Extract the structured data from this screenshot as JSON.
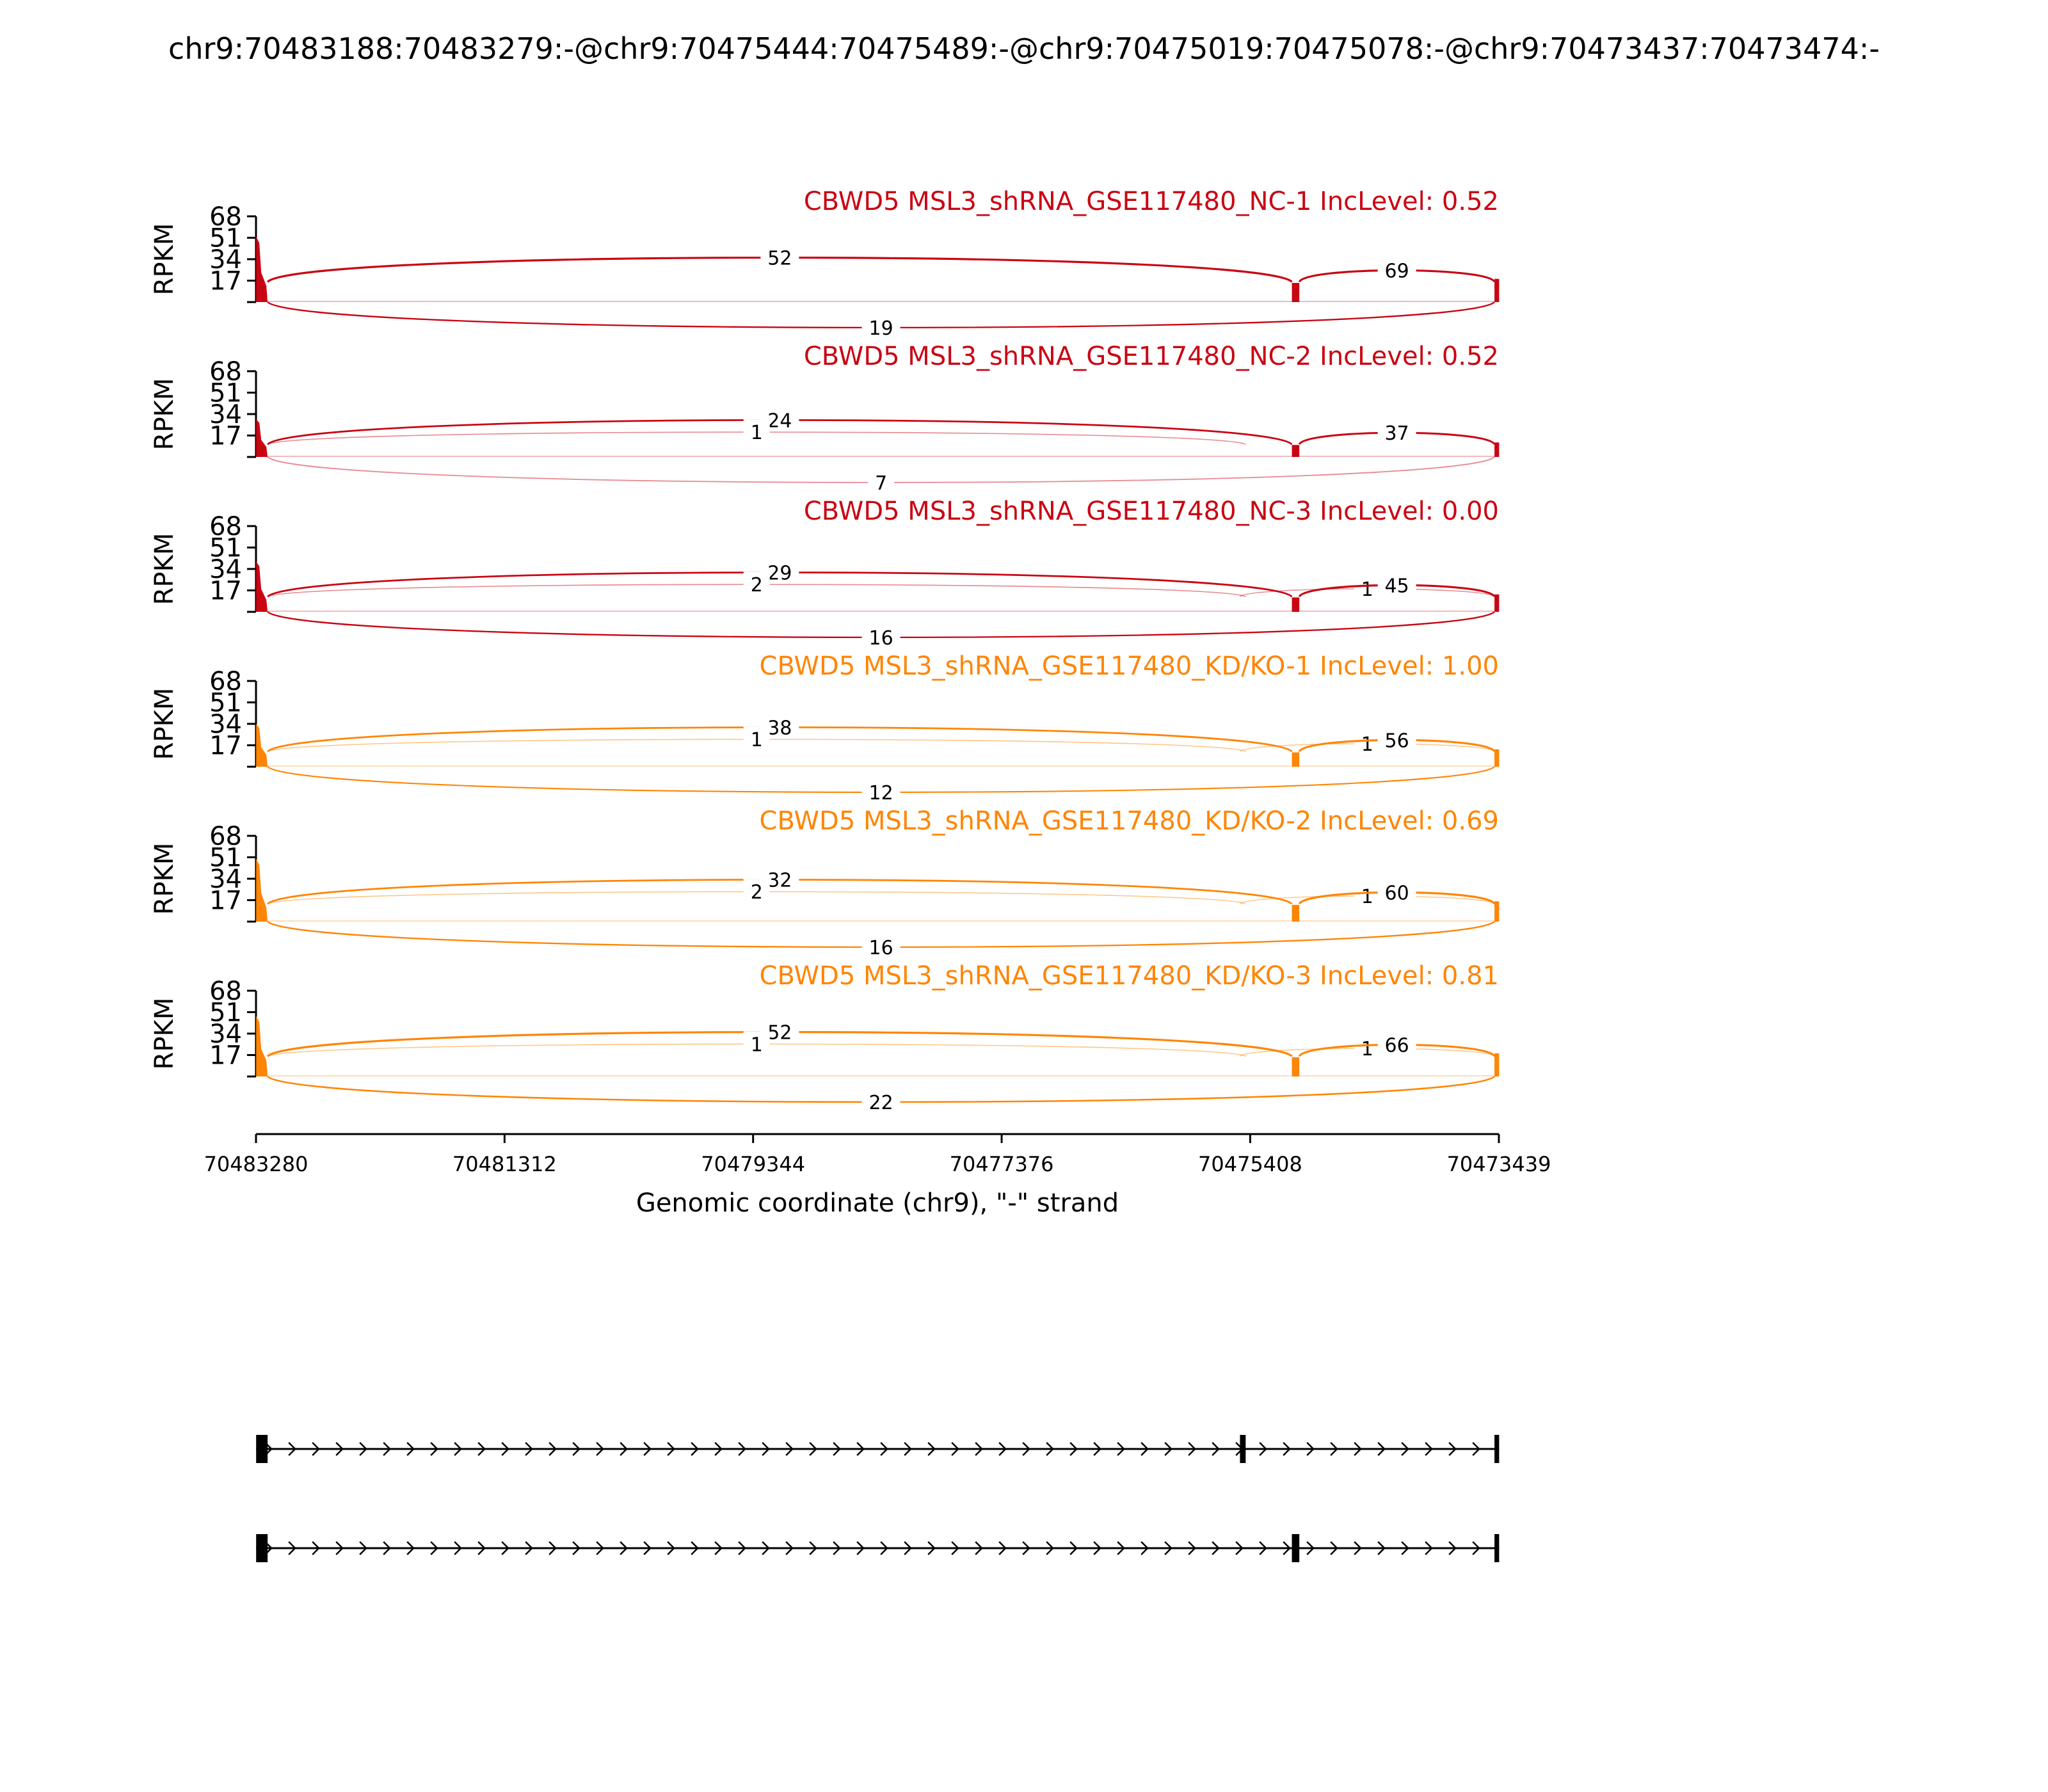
{
  "chart_data": {
    "type": "sashimi",
    "title": "chr9:70483188:70483279:-@chr9:70475444:70475489:-@chr9:70475019:70475078:-@chr9:70473437:70473474:-",
    "xlabel": "Genomic coordinate (chr9), \"-\" strand",
    "ylabel": "RPKM",
    "xlim": [
      70483280,
      70473439
    ],
    "x_ticks": [
      "70483280",
      "70481312",
      "70479344",
      "70477376",
      "70475408",
      "70473439"
    ],
    "ylim": [
      0,
      68
    ],
    "y_ticks": [
      "68",
      "51",
      "34",
      "17"
    ],
    "colors": {
      "NC": "#c90513",
      "KD": "#ff8505",
      "axis": "#000000"
    },
    "tracks": [
      {
        "label": "CBWD5 MSL3_shRNA_GSE117480_NC-1 IncLevel: 0.52",
        "group": "NC",
        "peak": 52,
        "mid_height": 8,
        "junctions": [
          {
            "from": 70483188,
            "to": 70475078,
            "label": "52",
            "side": "above",
            "weight": 1.0
          },
          {
            "from": 70475019,
            "to": 70473474,
            "label": "69",
            "side": "above",
            "weight": 1.0
          },
          {
            "from": 70483188,
            "to": 70473474,
            "label": "19",
            "side": "below",
            "weight": 0.6
          }
        ]
      },
      {
        "label": "CBWD5 MSL3_shRNA_GSE117480_NC-2 IncLevel: 0.52",
        "group": "NC",
        "peak": 30,
        "mid_height": 5,
        "junctions": [
          {
            "from": 70483188,
            "to": 70475078,
            "label": "24",
            "side": "above",
            "weight": 0.8
          },
          {
            "from": 70483188,
            "to": 70475444,
            "label": "1",
            "side": "above",
            "weight": 0.3
          },
          {
            "from": 70475019,
            "to": 70473474,
            "label": "37",
            "side": "above",
            "weight": 0.9
          },
          {
            "from": 70483188,
            "to": 70473474,
            "label": "7",
            "side": "below",
            "weight": 0.4
          }
        ]
      },
      {
        "label": "CBWD5 MSL3_shRNA_GSE117480_NC-3 IncLevel: 0.00",
        "group": "NC",
        "peak": 40,
        "mid_height": 6,
        "junctions": [
          {
            "from": 70483188,
            "to": 70475078,
            "label": "29",
            "side": "above",
            "weight": 0.8
          },
          {
            "from": 70483188,
            "to": 70475444,
            "label": "2",
            "side": "above",
            "weight": 0.3
          },
          {
            "from": 70475489,
            "to": 70473474,
            "label": "1",
            "side": "above",
            "weight": 0.25
          },
          {
            "from": 70475019,
            "to": 70473474,
            "label": "45",
            "side": "above",
            "weight": 1.0
          },
          {
            "from": 70483188,
            "to": 70473474,
            "label": "16",
            "side": "below",
            "weight": 0.6
          }
        ]
      },
      {
        "label": "CBWD5 MSL3_shRNA_GSE117480_KD/KO-1 IncLevel: 1.00",
        "group": "KD",
        "peak": 34,
        "mid_height": 6,
        "junctions": [
          {
            "from": 70483188,
            "to": 70475078,
            "label": "38",
            "side": "above",
            "weight": 0.8
          },
          {
            "from": 70483188,
            "to": 70475444,
            "label": "1",
            "side": "above",
            "weight": 0.3
          },
          {
            "from": 70475489,
            "to": 70473474,
            "label": "1",
            "side": "above",
            "weight": 0.25
          },
          {
            "from": 70475019,
            "to": 70473474,
            "label": "56",
            "side": "above",
            "weight": 1.0
          },
          {
            "from": 70483188,
            "to": 70473474,
            "label": "12",
            "side": "below",
            "weight": 0.5
          }
        ]
      },
      {
        "label": "CBWD5 MSL3_shRNA_GSE117480_KD/KO-2 IncLevel: 0.69",
        "group": "KD",
        "peak": 50,
        "mid_height": 7,
        "junctions": [
          {
            "from": 70483188,
            "to": 70475078,
            "label": "32",
            "side": "above",
            "weight": 0.8
          },
          {
            "from": 70483188,
            "to": 70475444,
            "label": "2",
            "side": "above",
            "weight": 0.3
          },
          {
            "from": 70475489,
            "to": 70473474,
            "label": "1",
            "side": "above",
            "weight": 0.25
          },
          {
            "from": 70475019,
            "to": 70473474,
            "label": "60",
            "side": "above",
            "weight": 1.0
          },
          {
            "from": 70483188,
            "to": 70473474,
            "label": "16",
            "side": "below",
            "weight": 0.6
          }
        ]
      },
      {
        "label": "CBWD5 MSL3_shRNA_GSE117480_KD/KO-3 IncLevel: 0.81",
        "group": "KD",
        "peak": 48,
        "mid_height": 8,
        "junctions": [
          {
            "from": 70483188,
            "to": 70475078,
            "label": "52",
            "side": "above",
            "weight": 1.0
          },
          {
            "from": 70483188,
            "to": 70475444,
            "label": "1",
            "side": "above",
            "weight": 0.3
          },
          {
            "from": 70475489,
            "to": 70473474,
            "label": "1",
            "side": "above",
            "weight": 0.25
          },
          {
            "from": 70475019,
            "to": 70473474,
            "label": "66",
            "side": "above",
            "weight": 1.0
          },
          {
            "from": 70483188,
            "to": 70473474,
            "label": "22",
            "side": "below",
            "weight": 0.7
          }
        ]
      }
    ],
    "isoforms": [
      {
        "exons": [
          [
            70483279,
            70483188
          ],
          [
            70475489,
            70475444
          ],
          [
            70473474,
            70473437
          ]
        ]
      },
      {
        "exons": [
          [
            70483279,
            70483188
          ],
          [
            70475078,
            70475019
          ],
          [
            70473474,
            70473437
          ]
        ]
      }
    ]
  }
}
